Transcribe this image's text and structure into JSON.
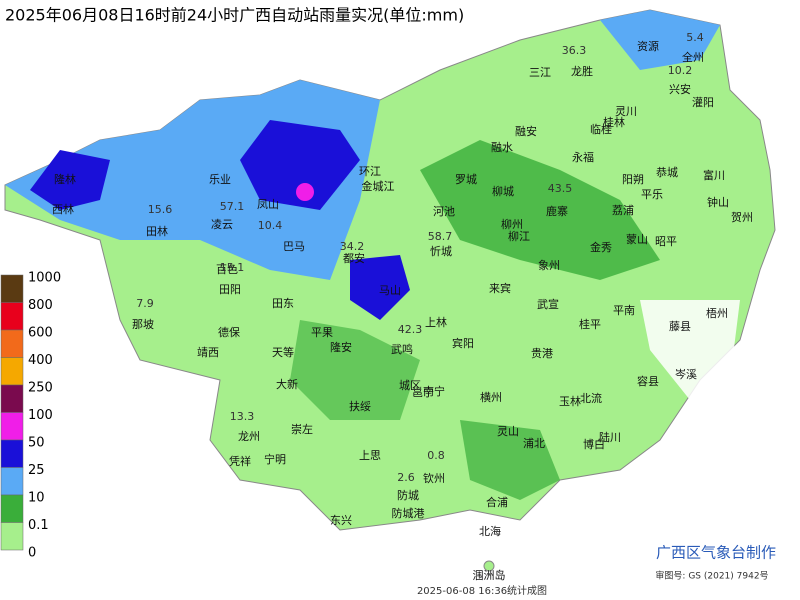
{
  "header": {
    "title": "2025年06月08日16时前24小时广西自动站雨量实况(单位:mm)"
  },
  "legend": {
    "levels": [
      {
        "label": "1000",
        "color": "#5a3a12"
      },
      {
        "label": "800",
        "color": "#e8001c"
      },
      {
        "label": "600",
        "color": "#f26a1b"
      },
      {
        "label": "400",
        "color": "#f5a800"
      },
      {
        "label": "250",
        "color": "#7a0a4e"
      },
      {
        "label": "100",
        "color": "#f01ee8"
      },
      {
        "label": "50",
        "color": "#1a10d8"
      },
      {
        "label": "25",
        "color": "#5aaaf5"
      },
      {
        "label": "10",
        "color": "#3aae3a"
      },
      {
        "label": "0.1",
        "color": "#a6ef8c"
      },
      {
        "label": "0",
        "color": "#ffffff"
      }
    ]
  },
  "places": [
    "资源",
    "全州",
    "三江",
    "龙胜",
    "兴安",
    "灌阳",
    "灵川",
    "临桂",
    "桂林",
    "融安",
    "融水",
    "永福",
    "阳朔",
    "恭城",
    "富川",
    "环江",
    "罗城",
    "金城江",
    "乐业",
    "凌云",
    "凤山",
    "隆林",
    "西林",
    "田林",
    "河池",
    "柳城",
    "鹿寨",
    "荔浦",
    "平乐",
    "钟山",
    "贺州",
    "巴马",
    "柳州",
    "柳江",
    "金秀",
    "蒙山",
    "昭平",
    "都安",
    "忻城",
    "象州",
    "百色",
    "田阳",
    "田东",
    "马山",
    "来宾",
    "武宣",
    "平南",
    "藤县",
    "梧州",
    "那坡",
    "德保",
    "平果",
    "上林",
    "桂平",
    "靖西",
    "天等",
    "隆安",
    "武鸣",
    "宾阳",
    "贵港",
    "岑溪",
    "大新",
    "容县",
    "南宁",
    "横州",
    "玉林",
    "北流",
    "扶绥",
    "崇左",
    "龙州",
    "凭祥",
    "宁明",
    "灵山",
    "浦北",
    "博白",
    "陆川",
    "上思",
    "钦州",
    "防城",
    "防城港",
    "东兴",
    "合浦",
    "北海",
    "涠洲岛",
    "城区",
    "邕宁"
  ],
  "rain_values": [
    "36.3",
    "43.5",
    "57.1",
    "58.7",
    "34.2",
    "15.1",
    "7.9",
    "15.6",
    "10.4",
    "42.3",
    "13.3",
    "2.6",
    "0.8",
    "5.4",
    "10.2"
  ],
  "footer": {
    "producer": "广西区气象台制作",
    "approval": "审图号: GS (2021) 7942号",
    "timestamp": "2025-06-08 16:36统计成图"
  }
}
